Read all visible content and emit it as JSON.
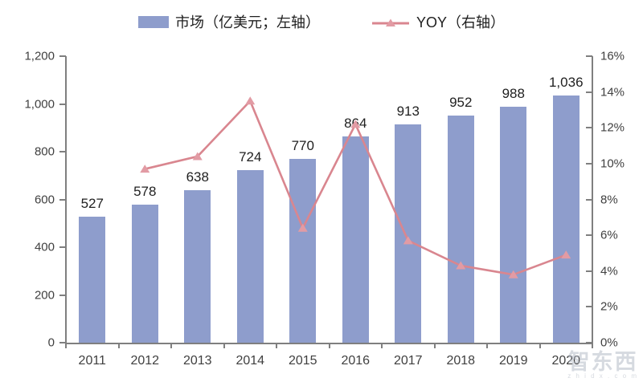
{
  "chart_data": {
    "type": "bar+line",
    "categories": [
      "2011",
      "2012",
      "2013",
      "2014",
      "2015",
      "2016",
      "2017",
      "2018",
      "2019",
      "2020"
    ],
    "series": [
      {
        "name": "市场（亿美元；左轴）",
        "type": "bar",
        "axis": "left",
        "values": [
          527,
          578,
          638,
          724,
          770,
          864,
          913,
          952,
          988,
          1036
        ],
        "value_labels": [
          "527",
          "578",
          "638",
          "724",
          "770",
          "864",
          "913",
          "952",
          "988",
          "1,036"
        ],
        "color": "#8E9DCC"
      },
      {
        "name": "YOY（右轴）",
        "type": "line",
        "axis": "right",
        "values": [
          null,
          9.7,
          10.4,
          13.5,
          6.4,
          12.2,
          5.7,
          4.3,
          3.8,
          4.9
        ],
        "color": "#D9868F",
        "marker": "triangle-up",
        "marker_color": "#E29BA4"
      }
    ],
    "left_axis": {
      "min": 0,
      "max": 1200,
      "step": 200,
      "tick_labels": [
        "0",
        "200",
        "400",
        "600",
        "800",
        "1,000",
        "1,200"
      ]
    },
    "right_axis": {
      "min": 0,
      "max": 16,
      "step": 2,
      "unit": "%",
      "tick_labels": [
        "0%",
        "2%",
        "4%",
        "6%",
        "8%",
        "10%",
        "12%",
        "14%",
        "16%"
      ]
    },
    "grid": false,
    "legend_position": "top",
    "title": ""
  },
  "colors": {
    "axis": "#7F7F7F",
    "tick_text": "#404040",
    "data_label": "#1F1F1F"
  },
  "watermark": {
    "text": "智东西",
    "subtext": "z h i d x . c o m"
  }
}
